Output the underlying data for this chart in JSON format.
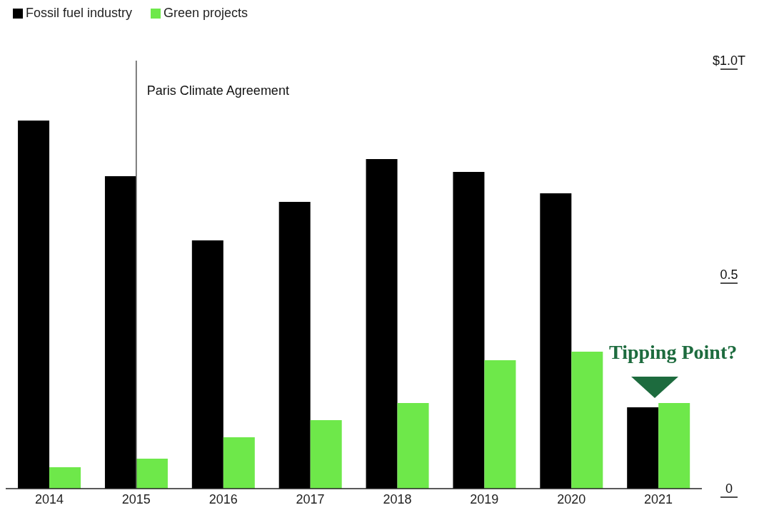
{
  "chart_data": {
    "type": "bar",
    "categories": [
      "2014",
      "2015",
      "2016",
      "2017",
      "2018",
      "2019",
      "2020",
      "2021"
    ],
    "series": [
      {
        "name": "Fossil fuel industry",
        "color": "#000000",
        "values": [
          0.86,
          0.73,
          0.58,
          0.67,
          0.77,
          0.74,
          0.69,
          0.19
        ]
      },
      {
        "name": "Green projects",
        "color": "#6ee84a",
        "values": [
          0.05,
          0.07,
          0.12,
          0.16,
          0.2,
          0.3,
          0.32,
          0.2
        ]
      }
    ],
    "ylim": [
      0,
      1
    ],
    "yticks": [
      0,
      0.5,
      {
        "value": 1,
        "label": "$1.0T"
      }
    ],
    "ref_lines": [
      {
        "axis": "x",
        "value": "2015",
        "label": "Paris Climate Agreement",
        "color": "#555555"
      }
    ],
    "annotations": [
      "Tipping Point?"
    ],
    "legend": "top left",
    "grid": false
  }
}
